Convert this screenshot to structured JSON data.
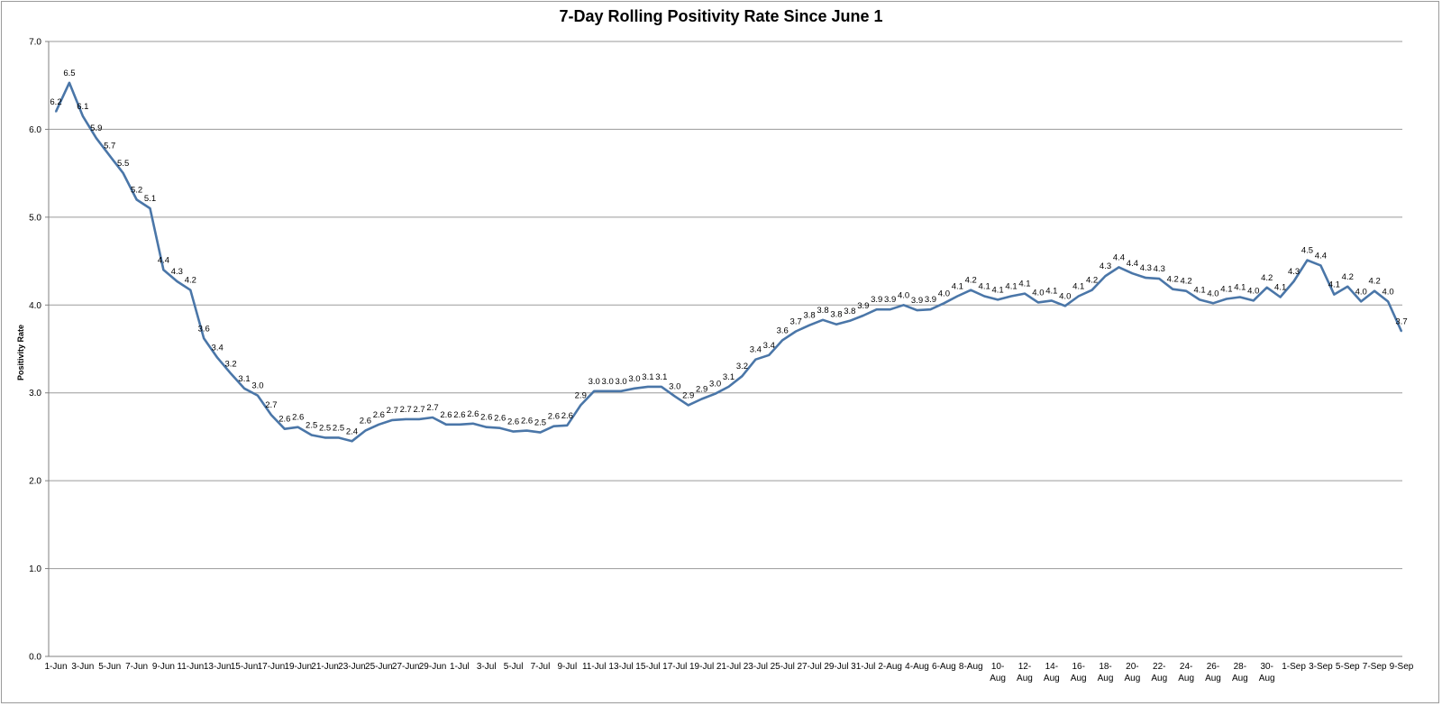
{
  "chart_data": {
    "type": "line",
    "title": "7-Day Rolling Positivity Rate Since June 1",
    "xlabel": "",
    "ylabel": "Positivity Rate",
    "ylim": [
      0,
      7
    ],
    "yticks": [
      "0.0",
      "1.0",
      "2.0",
      "3.0",
      "4.0",
      "5.0",
      "6.0",
      "7.0"
    ],
    "grid": "horizontal",
    "legend": "none",
    "line_color": "#4a76a8",
    "x": [
      "1-Jun",
      "2-Jun",
      "3-Jun",
      "4-Jun",
      "5-Jun",
      "6-Jun",
      "7-Jun",
      "8-Jun",
      "9-Jun",
      "10-Jun",
      "11-Jun",
      "12-Jun",
      "13-Jun",
      "14-Jun",
      "15-Jun",
      "16-Jun",
      "17-Jun",
      "18-Jun",
      "19-Jun",
      "20-Jun",
      "21-Jun",
      "22-Jun",
      "23-Jun",
      "24-Jun",
      "25-Jun",
      "26-Jun",
      "27-Jun",
      "28-Jun",
      "29-Jun",
      "30-Jun",
      "1-Jul",
      "2-Jul",
      "3-Jul",
      "4-Jul",
      "5-Jul",
      "6-Jul",
      "7-Jul",
      "8-Jul",
      "9-Jul",
      "10-Jul",
      "11-Jul",
      "12-Jul",
      "13-Jul",
      "14-Jul",
      "15-Jul",
      "16-Jul",
      "17-Jul",
      "18-Jul",
      "19-Jul",
      "20-Jul",
      "21-Jul",
      "22-Jul",
      "23-Jul",
      "24-Jul",
      "25-Jul",
      "26-Jul",
      "27-Jul",
      "28-Jul",
      "29-Jul",
      "30-Jul",
      "31-Jul",
      "1-Aug",
      "2-Aug",
      "3-Aug",
      "4-Aug",
      "5-Aug",
      "6-Aug",
      "7-Aug",
      "8-Aug",
      "9-Aug",
      "10-Aug",
      "11-Aug",
      "12-Aug",
      "13-Aug",
      "14-Aug",
      "15-Aug",
      "16-Aug",
      "17-Aug",
      "18-Aug",
      "19-Aug",
      "20-Aug",
      "21-Aug",
      "22-Aug",
      "23-Aug",
      "24-Aug",
      "25-Aug",
      "26-Aug",
      "27-Aug",
      "28-Aug",
      "29-Aug",
      "30-Aug",
      "31-Aug",
      "1-Sep",
      "2-Sep",
      "3-Sep",
      "4-Sep",
      "5-Sep",
      "6-Sep",
      "7-Sep",
      "8-Sep",
      "9-Sep"
    ],
    "tick_labels": [
      [
        "1-Jun"
      ],
      [
        "3-Jun"
      ],
      [
        "5-Jun"
      ],
      [
        "7-Jun"
      ],
      [
        "9-Jun"
      ],
      [
        "11-Jun"
      ],
      [
        "13-Jun"
      ],
      [
        "15-Jun"
      ],
      [
        "17-Jun"
      ],
      [
        "19-Jun"
      ],
      [
        "21-Jun"
      ],
      [
        "23-Jun"
      ],
      [
        "25-Jun"
      ],
      [
        "27-Jun"
      ],
      [
        "29-Jun"
      ],
      [
        "1-Jul"
      ],
      [
        "3-Jul"
      ],
      [
        "5-Jul"
      ],
      [
        "7-Jul"
      ],
      [
        "9-Jul"
      ],
      [
        "11-Jul"
      ],
      [
        "13-Jul"
      ],
      [
        "15-Jul"
      ],
      [
        "17-Jul"
      ],
      [
        "19-Jul"
      ],
      [
        "21-Jul"
      ],
      [
        "23-Jul"
      ],
      [
        "25-Jul"
      ],
      [
        "27-Jul"
      ],
      [
        "29-Jul"
      ],
      [
        "31-Jul"
      ],
      [
        "2-Aug"
      ],
      [
        "4-Aug"
      ],
      [
        "6-Aug"
      ],
      [
        "8-Aug"
      ],
      [
        "10-",
        "Aug"
      ],
      [
        "12-",
        "Aug"
      ],
      [
        "14-",
        "Aug"
      ],
      [
        "16-",
        "Aug"
      ],
      [
        "18-",
        "Aug"
      ],
      [
        "20-",
        "Aug"
      ],
      [
        "22-",
        "Aug"
      ],
      [
        "24-",
        "Aug"
      ],
      [
        "26-",
        "Aug"
      ],
      [
        "28-",
        "Aug"
      ],
      [
        "30-",
        "Aug"
      ],
      [
        "1-Sep"
      ],
      [
        "3-Sep"
      ],
      [
        "5-Sep"
      ],
      [
        "7-Sep"
      ],
      [
        "9-Sep"
      ]
    ],
    "series": [
      {
        "values": [
          6.2,
          6.53,
          6.15,
          5.9,
          5.7,
          5.5,
          5.2,
          5.1,
          4.4,
          4.27,
          4.17,
          3.62,
          3.4,
          3.22,
          3.05,
          2.97,
          2.75,
          2.59,
          2.61,
          2.52,
          2.49,
          2.49,
          2.45,
          2.57,
          2.64,
          2.69,
          2.7,
          2.7,
          2.72,
          2.64,
          2.64,
          2.65,
          2.61,
          2.6,
          2.56,
          2.57,
          2.55,
          2.62,
          2.63,
          2.86,
          3.02,
          3.02,
          3.02,
          3.05,
          3.07,
          3.07,
          2.96,
          2.86,
          2.93,
          2.99,
          3.07,
          3.19,
          3.38,
          3.43,
          3.6,
          3.7,
          3.77,
          3.83,
          3.78,
          3.82,
          3.88,
          3.95,
          3.95,
          4.0,
          3.94,
          3.95,
          4.02,
          4.1,
          4.17,
          4.1,
          4.06,
          4.1,
          4.13,
          4.03,
          4.05,
          3.99,
          4.1,
          4.17,
          4.33,
          4.43,
          4.36,
          4.31,
          4.3,
          4.18,
          4.16,
          4.06,
          4.02,
          4.07,
          4.09,
          4.05,
          4.2,
          4.09,
          4.27,
          4.51,
          4.45,
          4.12,
          4.21,
          4.04,
          4.16,
          4.04,
          3.7
        ],
        "labels": [
          "6.2",
          "6.5",
          "6.1",
          "5.9",
          "5.7",
          "5.5",
          "5.2",
          "5.1",
          "4.4",
          "4.3",
          "4.2",
          "3.6",
          "3.4",
          "3.2",
          "3.1",
          "3.0",
          "2.7",
          "2.6",
          "2.6",
          "2.5",
          "2.5",
          "2.5",
          "2.4",
          "2.6",
          "2.6",
          "2.7",
          "2.7",
          "2.7",
          "2.7",
          "2.6",
          "2.6",
          "2.6",
          "2.6",
          "2.6",
          "2.6",
          "2.6",
          "2.5",
          "2.6",
          "2.6",
          "2.9",
          "3.0",
          "3.0",
          "3.0",
          "3.0",
          "3.1",
          "3.1",
          "3.0",
          "2.9",
          "2.9",
          "3.0",
          "3.1",
          "3.2",
          "3.4",
          "3.4",
          "3.6",
          "3.7",
          "3.8",
          "3.8",
          "3.8",
          "3.8",
          "3.9",
          "3.9",
          "3.9",
          "4.0",
          "3.9",
          "3.9",
          "4.0",
          "4.1",
          "4.2",
          "4.1",
          "4.1",
          "4.1",
          "4.1",
          "4.0",
          "4.1",
          "4.0",
          "4.1",
          "4.2",
          "4.3",
          "4.4",
          "4.4",
          "4.3",
          "4.3",
          "4.2",
          "4.2",
          "4.1",
          "4.0",
          "4.1",
          "4.1",
          "4.0",
          "4.2",
          "4.1",
          "4.3",
          "4.5",
          "4.4",
          "4.1",
          "4.2",
          "4.0",
          "4.2",
          "4.0",
          "3.7"
        ]
      }
    ]
  }
}
